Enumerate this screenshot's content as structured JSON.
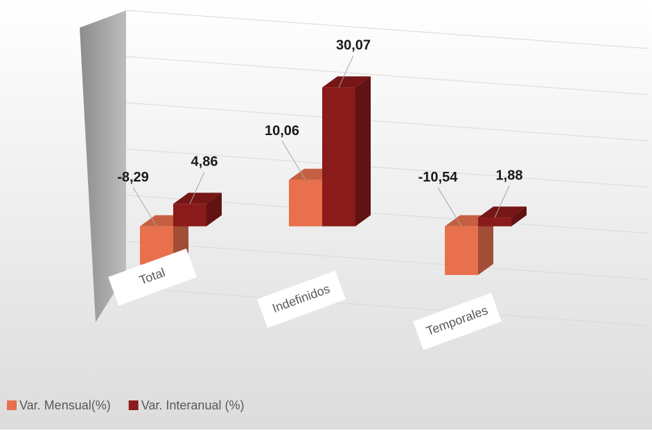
{
  "chart_data": {
    "type": "bar3d",
    "categories": [
      "Total",
      "Indefinidos",
      "Temporales"
    ],
    "series": [
      {
        "name": "Var. Mensual(%)",
        "color": "#e8704d",
        "values": [
          -8.29,
          10.06,
          -10.54
        ],
        "value_labels": [
          "-8,29",
          "10,06",
          "-10,54"
        ]
      },
      {
        "name": "Var. Interanual (%)",
        "color": "#8b1a1a",
        "values": [
          4.86,
          30.07,
          1.88
        ],
        "value_labels": [
          "4,86",
          "30,07",
          "1,88"
        ]
      }
    ],
    "ylim": [
      -20,
      40
    ],
    "yticks": [
      -20,
      -10,
      0,
      10,
      20,
      30,
      40
    ],
    "grid": true,
    "legend": "bottom-left"
  }
}
